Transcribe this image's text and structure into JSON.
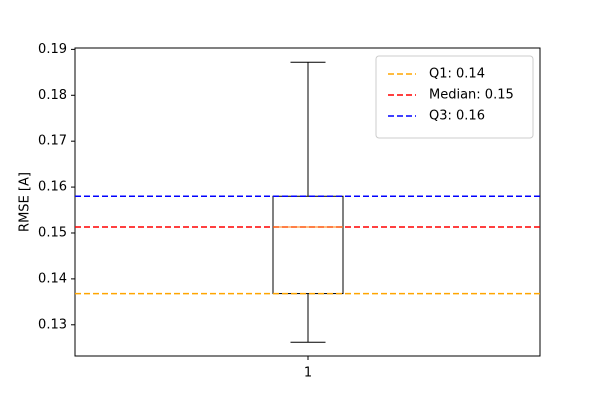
{
  "chart_data": {
    "type": "box",
    "title": "",
    "xlabel": "",
    "ylabel": "RMSE [A]",
    "categories": [
      "1"
    ],
    "ylim": [
      0.1232,
      0.1903
    ],
    "yticks": [
      0.13,
      0.14,
      0.15,
      0.16,
      0.17,
      0.18,
      0.19
    ],
    "ytick_labels": [
      "0.13",
      "0.14",
      "0.15",
      "0.16",
      "0.17",
      "0.18",
      "0.19"
    ],
    "box": {
      "whisker_low": 0.1262,
      "q1": 0.1368,
      "median": 0.1513,
      "q3": 0.158,
      "whisker_high": 0.1872
    },
    "reference_lines": [
      {
        "name": "Q1: 0.14",
        "value": 0.1368,
        "color": "#ffa500"
      },
      {
        "name": "Median: 0.15",
        "value": 0.1513,
        "color": "#ff0000"
      },
      {
        "name": "Q3: 0.16",
        "value": 0.158,
        "color": "#0000ff"
      }
    ],
    "legend_position": "top-right",
    "grid": false
  }
}
